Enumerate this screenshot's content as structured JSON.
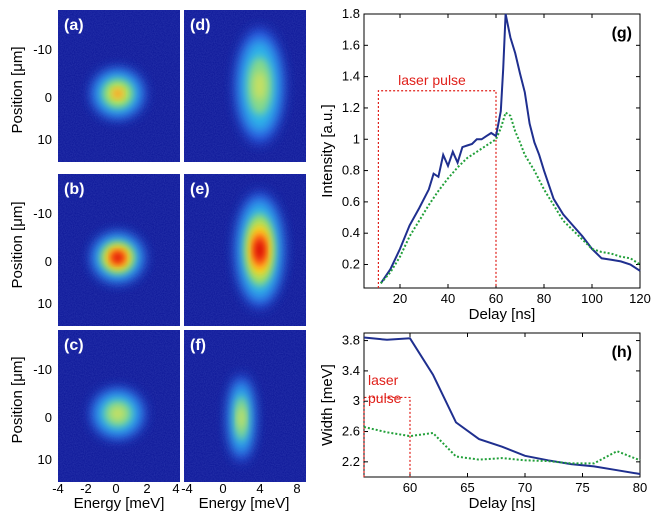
{
  "images": {
    "ylabel": "Position [μm]",
    "xlabel_left": "Energy [meV]",
    "xlabel_right": "Energy [meV]",
    "y_ticks": [
      "-10",
      "0",
      "10"
    ],
    "x_ticks_left": [
      "-4",
      "-2",
      "0",
      "2",
      "4"
    ],
    "x_ticks_right": [
      "-4",
      "0",
      "4",
      "8"
    ],
    "panels": [
      {
        "label": "(a)",
        "blob": "round",
        "peak": "high"
      },
      {
        "label": "(b)",
        "blob": "round",
        "peak": "max"
      },
      {
        "label": "(c)",
        "blob": "round",
        "peak": "low"
      },
      {
        "label": "(d)",
        "blob": "elongated",
        "peak": "low"
      },
      {
        "label": "(e)",
        "blob": "elongated",
        "peak": "max"
      },
      {
        "label": "(f)",
        "blob": "narrow",
        "peak": "low"
      }
    ]
  },
  "chart_data": [
    {
      "type": "line",
      "panel_label": "(g)",
      "xlabel": "Delay [ns]",
      "ylabel": "Intensity [a.u.]",
      "xlim": [
        5,
        120
      ],
      "ylim": [
        0.05,
        1.8
      ],
      "x_ticks": [
        20,
        40,
        60,
        80,
        100,
        120
      ],
      "y_ticks": [
        0.2,
        0.4,
        0.6,
        0.8,
        1,
        1.2,
        1.4,
        1.6,
        1.8
      ],
      "annotation": "laser pulse",
      "pulse_window": {
        "start": 11,
        "end": 60,
        "level": 1.31
      },
      "series": [
        {
          "style": "solid",
          "color": "#1f2f8f",
          "x": [
            12,
            16,
            20,
            24,
            28,
            32,
            34,
            36,
            38,
            40,
            42,
            44,
            46,
            48,
            50,
            52,
            54,
            56,
            58,
            60,
            62,
            63,
            64,
            66,
            68,
            70,
            72,
            74,
            76,
            78,
            80,
            84,
            88,
            92,
            96,
            100,
            104,
            108,
            112,
            116,
            120
          ],
          "y": [
            0.08,
            0.17,
            0.3,
            0.45,
            0.56,
            0.68,
            0.78,
            0.76,
            0.9,
            0.83,
            0.92,
            0.85,
            0.95,
            0.96,
            0.97,
            1.0,
            1.0,
            1.02,
            1.04,
            1.02,
            1.18,
            1.45,
            1.8,
            1.65,
            1.55,
            1.42,
            1.3,
            1.1,
            0.98,
            0.9,
            0.8,
            0.62,
            0.52,
            0.45,
            0.38,
            0.3,
            0.24,
            0.23,
            0.22,
            0.2,
            0.16
          ]
        },
        {
          "style": "dotted",
          "color": "#22a03a",
          "x": [
            12,
            16,
            20,
            24,
            28,
            32,
            36,
            40,
            44,
            48,
            52,
            56,
            60,
            62,
            64,
            66,
            68,
            70,
            72,
            76,
            80,
            84,
            88,
            92,
            96,
            100,
            104,
            108,
            112,
            116,
            120
          ],
          "y": [
            0.08,
            0.15,
            0.25,
            0.38,
            0.48,
            0.58,
            0.67,
            0.75,
            0.82,
            0.88,
            0.92,
            0.96,
            1.0,
            1.07,
            1.17,
            1.15,
            1.05,
            0.98,
            0.9,
            0.8,
            0.68,
            0.58,
            0.48,
            0.42,
            0.36,
            0.3,
            0.28,
            0.27,
            0.25,
            0.24,
            0.2
          ]
        }
      ]
    },
    {
      "type": "line",
      "panel_label": "(h)",
      "xlabel": "Delay [ns]",
      "ylabel": "Width [meV]",
      "xlim": [
        56,
        80
      ],
      "ylim": [
        2.0,
        3.9
      ],
      "x_ticks": [
        60,
        65,
        70,
        75,
        80
      ],
      "y_ticks": [
        2.2,
        2.6,
        3,
        3.4,
        3.8
      ],
      "annotation": [
        "laser",
        "pulse"
      ],
      "pulse_window": {
        "start": 56,
        "end": 60,
        "level": 3.05
      },
      "series": [
        {
          "style": "solid",
          "color": "#1f2f8f",
          "x": [
            56,
            58,
            60,
            62,
            64,
            66,
            68,
            70,
            72,
            74,
            76,
            78,
            80
          ],
          "y": [
            3.84,
            3.81,
            3.83,
            3.35,
            2.72,
            2.5,
            2.4,
            2.28,
            2.22,
            2.17,
            2.14,
            2.09,
            2.04
          ]
        },
        {
          "style": "dotted",
          "color": "#22a03a",
          "x": [
            56,
            58,
            60,
            62,
            64,
            66,
            68,
            70,
            72,
            74,
            76,
            78,
            80
          ],
          "y": [
            2.66,
            2.59,
            2.54,
            2.58,
            2.27,
            2.23,
            2.25,
            2.22,
            2.21,
            2.18,
            2.18,
            2.34,
            2.22
          ]
        }
      ]
    }
  ]
}
